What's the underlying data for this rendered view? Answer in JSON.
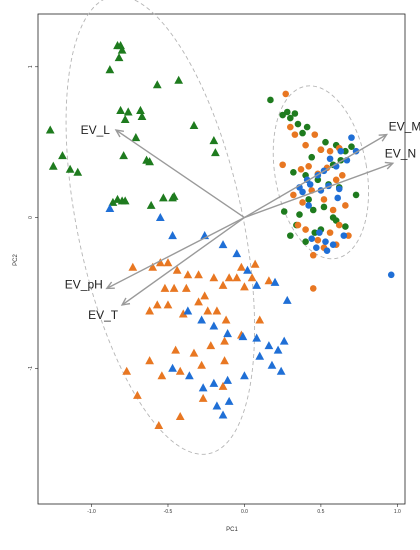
{
  "chart_data": {
    "type": "scatter",
    "title": "",
    "xlabel": "PC1",
    "ylabel": "PC2",
    "xlim": [
      -1.35,
      1.05
    ],
    "ylim": [
      -1.9,
      1.35
    ],
    "x_ticks": [
      -1.0,
      -0.5,
      0.0,
      0.5,
      1.0
    ],
    "x_tick_labels": [
      "-1.0",
      "-0.5",
      "0.0",
      "0.5",
      "1.0"
    ],
    "y_ticks": [
      -1,
      0,
      1
    ],
    "y_tick_labels": [
      "-1",
      "0",
      "1"
    ],
    "grid": false,
    "legend": "none",
    "colors": {
      "green": "#1e7b1e",
      "orange": "#e87722",
      "blue": "#1f6fd6",
      "arrow": "#9a9a9a",
      "ellipse": "#b5b5b5"
    },
    "series": [
      {
        "group": "triangle-green",
        "marker": "triangle",
        "color": "#1e7b1e",
        "x": [
          -0.83,
          -0.81,
          -0.8,
          -0.82,
          -0.88,
          -0.57,
          -0.43,
          -0.81,
          -0.68,
          -0.67,
          -0.71,
          -0.76,
          -0.78,
          -0.33,
          -0.2,
          -0.19,
          -1.27,
          -1.19,
          -1.25,
          -1.14,
          -1.09,
          -0.79,
          -0.64,
          -0.62,
          -0.86,
          -0.83,
          -0.8,
          -0.78,
          -0.53,
          -0.47,
          -0.46,
          -0.61
        ],
        "y": [
          1.14,
          1.14,
          1.11,
          1.06,
          0.98,
          0.88,
          0.91,
          0.71,
          0.71,
          0.67,
          0.53,
          0.7,
          0.65,
          0.61,
          0.51,
          0.43,
          0.58,
          0.41,
          0.34,
          0.32,
          0.3,
          0.41,
          0.38,
          0.37,
          0.1,
          0.12,
          0.11,
          0.11,
          0.13,
          0.13,
          0.14,
          0.08
        ]
      },
      {
        "group": "triangle-orange",
        "marker": "triangle",
        "color": "#e87722",
        "x": [
          -0.73,
          -0.6,
          -0.55,
          -0.5,
          -0.44,
          -0.37,
          -0.3,
          -0.2,
          -0.1,
          -0.02,
          0.07,
          0.16,
          -0.52,
          -0.46,
          -0.38,
          -0.26,
          -0.14,
          -0.05,
          0.0,
          0.05,
          -0.62,
          -0.57,
          -0.5,
          -0.4,
          -0.3,
          -0.24,
          -0.18,
          -0.12,
          0.1,
          -0.77,
          -0.62,
          -0.45,
          -0.33,
          -0.22,
          -0.13,
          -0.02,
          -0.7,
          -0.54,
          -0.42,
          -0.28,
          -0.13,
          -0.56,
          -0.42,
          -0.27,
          -0.14
        ],
        "y": [
          -0.33,
          -0.33,
          -0.3,
          -0.3,
          -0.35,
          -0.38,
          -0.38,
          -0.4,
          -0.4,
          -0.33,
          -0.31,
          -0.42,
          -0.47,
          -0.47,
          -0.47,
          -0.52,
          -0.45,
          -0.4,
          -0.46,
          -0.4,
          -0.62,
          -0.58,
          -0.58,
          -0.64,
          -0.56,
          -0.62,
          -0.62,
          -0.68,
          -0.68,
          -1.02,
          -0.95,
          -0.88,
          -0.9,
          -0.85,
          -0.82,
          -0.78,
          -1.18,
          -1.05,
          -1.02,
          -0.98,
          -0.95,
          -1.38,
          -1.32,
          -1.2,
          -1.12
        ]
      },
      {
        "group": "triangle-blue",
        "marker": "triangle",
        "color": "#1f6fd6",
        "x": [
          -0.88,
          -0.55,
          -0.47,
          -0.26,
          -0.14,
          -0.05,
          0.02,
          0.08,
          0.2,
          0.28,
          -0.37,
          -0.28,
          -0.2,
          -0.11,
          -0.01,
          0.08,
          0.16,
          0.22,
          0.26,
          0.1,
          0.18,
          0.24,
          -0.47,
          -0.36,
          -0.27,
          -0.2,
          -0.11,
          0.0,
          -0.18,
          -0.14,
          -0.1
        ],
        "y": [
          0.06,
          0.0,
          -0.12,
          -0.12,
          -0.18,
          -0.24,
          -0.35,
          -0.45,
          -0.43,
          -0.55,
          -0.62,
          -0.68,
          -0.72,
          -0.77,
          -0.79,
          -0.8,
          -0.85,
          -0.88,
          -0.82,
          -0.92,
          -0.98,
          -1.02,
          -1.0,
          -1.05,
          -1.13,
          -1.1,
          -1.08,
          -1.05,
          -1.25,
          -1.31,
          -1.22
        ]
      },
      {
        "group": "circle-green",
        "marker": "circle",
        "color": "#1e7b1e",
        "x": [
          0.17,
          0.28,
          0.33,
          0.41,
          0.53,
          0.6,
          0.66,
          0.7,
          0.25,
          0.3,
          0.35,
          0.38,
          0.44,
          0.5,
          0.58,
          0.63,
          0.73,
          0.32,
          0.4,
          0.48,
          0.55,
          0.62,
          0.26,
          0.36,
          0.45,
          0.52,
          0.58,
          0.34,
          0.46,
          0.3,
          0.4,
          0.5,
          0.6,
          0.66,
          0.42
        ],
        "y": [
          0.78,
          0.7,
          0.69,
          0.6,
          0.5,
          0.48,
          0.44,
          0.47,
          0.68,
          0.66,
          0.62,
          0.56,
          0.4,
          0.45,
          0.35,
          0.38,
          0.15,
          0.3,
          0.28,
          0.25,
          0.22,
          0.2,
          0.04,
          0.02,
          0.05,
          0.07,
          0.0,
          -0.05,
          -0.1,
          -0.12,
          -0.16,
          -0.08,
          -0.02,
          -0.06,
          0.12
        ]
      },
      {
        "group": "circle-orange",
        "marker": "circle",
        "color": "#e87722",
        "x": [
          0.27,
          0.3,
          0.33,
          0.4,
          0.46,
          0.5,
          0.56,
          0.62,
          0.25,
          0.37,
          0.42,
          0.48,
          0.54,
          0.6,
          0.64,
          0.32,
          0.38,
          0.44,
          0.52,
          0.58,
          0.66,
          0.35,
          0.4,
          0.48,
          0.56,
          0.62,
          0.45,
          0.52,
          0.6,
          0.68,
          0.45
        ],
        "y": [
          0.82,
          0.6,
          0.55,
          0.48,
          0.55,
          0.45,
          0.44,
          0.46,
          0.35,
          0.32,
          0.34,
          0.29,
          0.33,
          0.25,
          0.28,
          0.15,
          0.1,
          0.18,
          0.12,
          0.05,
          0.08,
          -0.05,
          -0.08,
          -0.15,
          -0.1,
          -0.05,
          -0.25,
          -0.2,
          -0.18,
          -0.12,
          -0.47
        ]
      },
      {
        "group": "circle-blue",
        "marker": "circle",
        "color": "#1f6fd6",
        "x": [
          0.7,
          0.73,
          0.63,
          0.67,
          0.56,
          0.6,
          0.48,
          0.52,
          0.43,
          0.36,
          0.38,
          0.41,
          0.5,
          0.55,
          0.62,
          0.44,
          0.49,
          0.53,
          0.58,
          0.65,
          0.47,
          0.54,
          0.96,
          0.42,
          0.61
        ],
        "y": [
          0.53,
          0.44,
          0.44,
          0.38,
          0.39,
          0.34,
          0.28,
          0.31,
          0.22,
          0.2,
          0.17,
          0.25,
          0.18,
          0.21,
          0.19,
          -0.14,
          -0.1,
          -0.16,
          -0.18,
          -0.12,
          -0.2,
          -0.22,
          -0.38,
          0.08,
          0.13
        ]
      }
    ],
    "arrows": [
      {
        "label": "EV_L",
        "x": -0.84,
        "y": 0.58
      },
      {
        "label": "EV_M",
        "x": 0.93,
        "y": 0.55
      },
      {
        "label": "EV_N",
        "x": 0.97,
        "y": 0.36
      },
      {
        "label": "EV_pH",
        "x": -0.9,
        "y": -0.47
      },
      {
        "label": "EV_T",
        "x": -0.8,
        "y": -0.58
      }
    ],
    "ellipses": [
      {
        "cx": -0.55,
        "cy": -0.05,
        "rx": 0.54,
        "ry": 1.55,
        "angle": 12
      },
      {
        "cx": 0.5,
        "cy": 0.3,
        "rx": 0.3,
        "ry": 0.58,
        "angle": 10
      }
    ]
  }
}
